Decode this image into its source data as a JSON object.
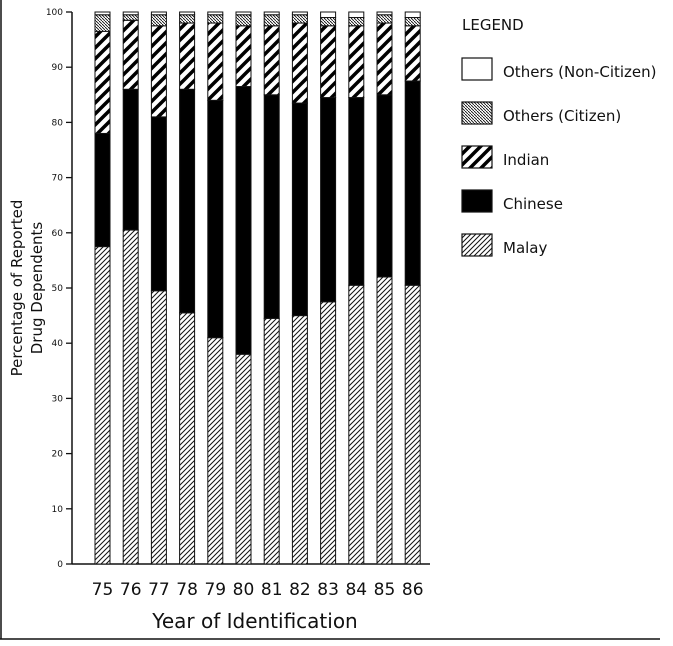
{
  "chart_data": {
    "type": "bar",
    "stacked": true,
    "categories": [
      "75",
      "76",
      "77",
      "78",
      "79",
      "80",
      "81",
      "82",
      "83",
      "84",
      "85",
      "86"
    ],
    "series": [
      {
        "name": "Malay",
        "pattern": "fine-diagonal-hatch",
        "values": [
          57.5,
          60.5,
          49.5,
          45.5,
          41,
          38,
          44.5,
          45,
          47.5,
          50.5,
          52,
          50.5
        ]
      },
      {
        "name": "Chinese",
        "pattern": "solid-black",
        "values": [
          20.5,
          25.5,
          31.5,
          40.5,
          43,
          48.5,
          40.5,
          38.5,
          37,
          34,
          33,
          37
        ]
      },
      {
        "name": "Indian",
        "pattern": "bold-diagonal-hatch",
        "values": [
          18.5,
          12.5,
          16.5,
          12,
          14,
          11,
          12.5,
          14.5,
          13,
          13,
          13,
          10
        ]
      },
      {
        "name": "Others (Citizen)",
        "pattern": "dense-hatch",
        "values": [
          3,
          1,
          2,
          1.5,
          1.5,
          2,
          2,
          1.5,
          1.5,
          1.5,
          1.5,
          1.5
        ]
      },
      {
        "name": "Others (Non-Citizen)",
        "pattern": "white",
        "values": [
          0.5,
          0.5,
          0.5,
          0.5,
          0.5,
          0.5,
          0.5,
          0.5,
          1,
          1,
          0.5,
          1
        ]
      }
    ],
    "ylabel": [
      "Percentage of Reported",
      "Drug Dependents"
    ],
    "xlabel": "Year of Identification",
    "ylim": [
      0,
      100
    ],
    "yticks": [
      "0",
      "10",
      "20",
      "30",
      "40",
      "50",
      "60",
      "70",
      "80",
      "90",
      "100"
    ],
    "legend": {
      "title": "LEGEND",
      "placement": "right"
    },
    "grid": false
  }
}
